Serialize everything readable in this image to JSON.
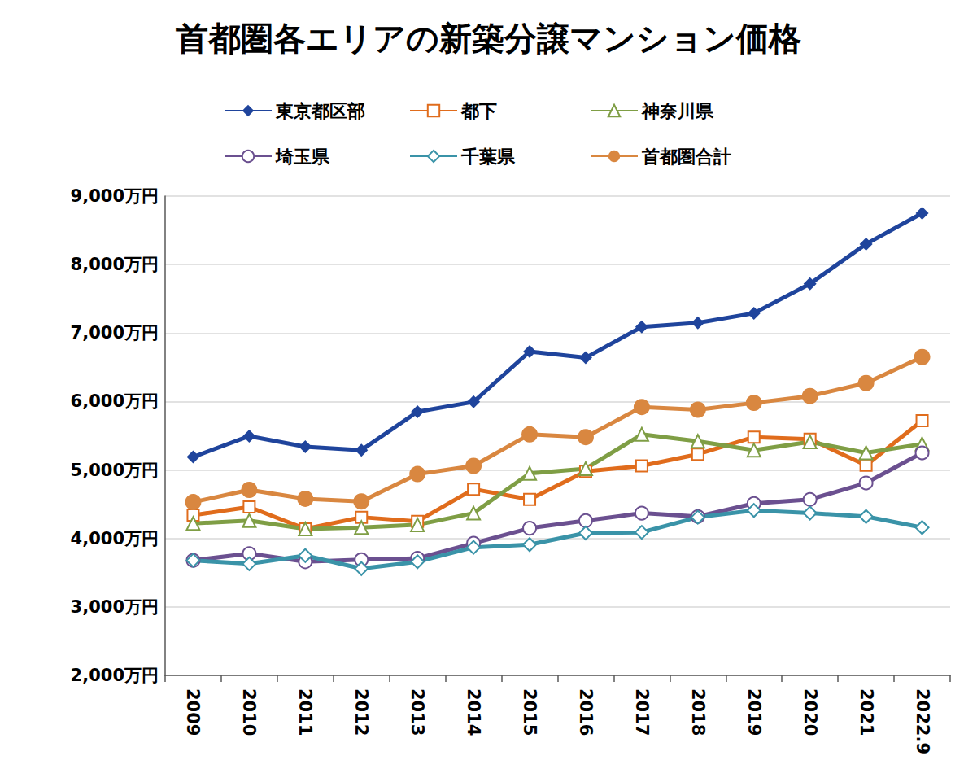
{
  "chart_data": {
    "type": "line",
    "title": "首都圏各エリアの新築分譲マンション価格",
    "categories": [
      "2009",
      "2010",
      "2011",
      "2012",
      "2013",
      "2014",
      "2015",
      "2016",
      "2017",
      "2018",
      "2019",
      "2020",
      "2021",
      "2022.9"
    ],
    "series": [
      {
        "name": "東京都区部",
        "color": "#1f449c",
        "marker": "diamond",
        "values": [
          5190,
          5495,
          5340,
          5290,
          5850,
          5995,
          6730,
          6640,
          7090,
          7150,
          7290,
          7720,
          8300,
          8750
        ]
      },
      {
        "name": "都下",
        "color": "#e06c1c",
        "marker": "open-square",
        "values": [
          4340,
          4460,
          4140,
          4310,
          4250,
          4720,
          4570,
          4980,
          5060,
          5230,
          5480,
          5450,
          5070,
          5720
        ]
      },
      {
        "name": "神奈川県",
        "color": "#7f9e45",
        "marker": "open-triangle",
        "values": [
          4220,
          4260,
          4140,
          4160,
          4200,
          4370,
          4950,
          5020,
          5520,
          5420,
          5290,
          5410,
          5250,
          5380
        ]
      },
      {
        "name": "埼玉県",
        "color": "#6b5090",
        "marker": "open-circle",
        "values": [
          3680,
          3780,
          3660,
          3690,
          3710,
          3930,
          4150,
          4260,
          4370,
          4320,
          4510,
          4570,
          4810,
          5250
        ]
      },
      {
        "name": "千葉県",
        "color": "#3a93a8",
        "marker": "open-diamond",
        "values": [
          3680,
          3630,
          3750,
          3560,
          3660,
          3870,
          3910,
          4080,
          4090,
          4310,
          4410,
          4370,
          4320,
          4160
        ]
      },
      {
        "name": "首都圏合計",
        "color": "#d98740",
        "marker": "circle",
        "values": [
          4530,
          4710,
          4580,
          4540,
          4940,
          5060,
          5520,
          5480,
          5920,
          5880,
          5980,
          6080,
          6270,
          6650
        ]
      }
    ],
    "ylim": [
      2000,
      9000
    ],
    "yticks": [
      {
        "value": 2000,
        "label": "2,000万円"
      },
      {
        "value": 3000,
        "label": "3,000万円"
      },
      {
        "value": 4000,
        "label": "4,000万円"
      },
      {
        "value": 5000,
        "label": "5,000万円"
      },
      {
        "value": 6000,
        "label": "6,000万円"
      },
      {
        "value": 7000,
        "label": "7,000万円"
      },
      {
        "value": 8000,
        "label": "8,000万円"
      },
      {
        "value": 9000,
        "label": "9,000万円"
      }
    ],
    "grid": true,
    "legend": "top"
  }
}
